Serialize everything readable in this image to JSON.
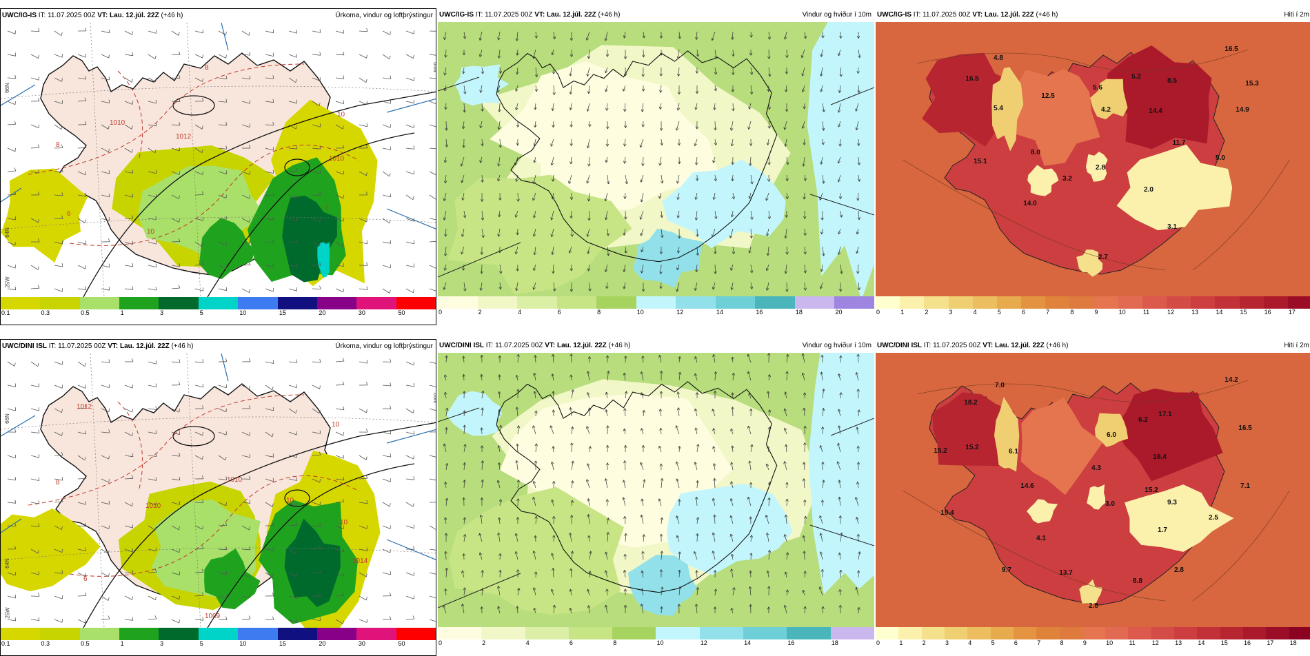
{
  "rows": [
    {
      "panels": [
        {
          "kind": "precip",
          "model": "UWC/IG-IS",
          "it": "IT: 11.07.2025 00Z",
          "vt": "VT: Lau. 12.júl. 22Z",
          "lead": "(+46 h)",
          "variable": "Úrkoma, vindur og loftþrýstingur",
          "legend": [
            "0.1",
            "0.3",
            "0.5",
            "1",
            "3",
            "5",
            "10",
            "15",
            "20",
            "30",
            "50"
          ],
          "grid_labels": {
            "lat_a": "66N",
            "lon_a": "65N",
            "lat_b": "64N",
            "lon_b": "25W"
          },
          "iso_labels": [
            "1010",
            "1012",
            "1010",
            "8",
            "6",
            "10",
            "10",
            "6",
            "8"
          ]
        },
        {
          "kind": "wind",
          "model": "UWC/IG-IS",
          "it": "IT: 11.07.2025 00Z",
          "vt": "VT: Lau. 12.júl. 22Z",
          "lead": "(+46 h)",
          "variable": "Vindur og hviður í 10m",
          "legend": [
            "0",
            "2",
            "4",
            "6",
            "8",
            "10",
            "12",
            "14",
            "16",
            "18",
            "20"
          ]
        },
        {
          "kind": "temp",
          "model": "UWC/IG-IS",
          "it": "IT: 11.07.2025 00Z",
          "vt": "VT: Lau. 12.júl. 22Z",
          "lead": "(+46 h)",
          "variable": "Hiti í 2m",
          "legend": [
            "0",
            "1",
            "2",
            "3",
            "4",
            "5",
            "6",
            "7",
            "8",
            "9",
            "10",
            "11",
            "12",
            "13",
            "14",
            "15",
            "16",
            "17"
          ],
          "temps": [
            "16.5",
            "4.8",
            "12.5",
            "5.6",
            "5.2",
            "8.5",
            "16.5",
            "15.3",
            "5.4",
            "4.2",
            "14.4",
            "14.9",
            "15.1",
            "8.0",
            "3.2",
            "2.8",
            "11.7",
            "5.0",
            "2.0",
            "14.0",
            "3.1",
            "2.7"
          ]
        }
      ]
    },
    {
      "panels": [
        {
          "kind": "precip",
          "model": "UWC/DINI ISL",
          "it": "IT: 11.07.2025 00Z",
          "vt": "VT: Lau. 12.júl. 22Z",
          "lead": "(+46 h)",
          "variable": "Úrkoma, vindur og loftþrýstingur",
          "legend": [
            "0.1",
            "0.3",
            "0.5",
            "1",
            "3",
            "5",
            "10",
            "15",
            "20",
            "30",
            "50"
          ],
          "grid_labels": {
            "lat_a": "66N",
            "lon_a": "65N",
            "lat_b": "64N",
            "lon_b": "25W"
          },
          "iso_labels": [
            "1012",
            "1010",
            "1010",
            "1009",
            "1014",
            "8",
            "6",
            "10",
            "10",
            "10"
          ]
        },
        {
          "kind": "wind",
          "model": "UWC/DINI ISL",
          "it": "IT: 11.07.2025 00Z",
          "vt": "VT: Lau. 12.júl. 22Z",
          "lead": "(+46 h)",
          "variable": "Vindur og hviður í 10m",
          "legend": [
            "0",
            "2",
            "4",
            "6",
            "8",
            "10",
            "12",
            "14",
            "16",
            "18"
          ]
        },
        {
          "kind": "temp",
          "model": "UWC/DINI ISL",
          "it": "IT: 11.07.2025 00Z",
          "vt": "VT: Lau. 12.júl. 22Z",
          "lead": "(+46 h)",
          "variable": "Hiti í 2m",
          "legend": [
            "0",
            "1",
            "2",
            "3",
            "4",
            "5",
            "6",
            "7",
            "8",
            "9",
            "10",
            "11",
            "12",
            "13",
            "14",
            "15",
            "16",
            "17",
            "18"
          ],
          "temps": [
            "18.2",
            "7.0",
            "14.2",
            "6.0",
            "6.2",
            "17.1",
            "16.5",
            "15.2",
            "15.2",
            "6.1",
            "4.3",
            "16.4",
            "14.6",
            "15.2",
            "9.3",
            "7.1",
            "15.4",
            "3.0",
            "4.1",
            "1.7",
            "2.5",
            "9.7",
            "13.7",
            "8.8",
            "2.8",
            "2.8"
          ]
        }
      ]
    }
  ],
  "palettes": {
    "precip": [
      "#d7d700",
      "#c8d400",
      "#a8e06a",
      "#1fa31f",
      "#006a2c",
      "#00d4c8",
      "#3c7cf0",
      "#101080",
      "#880088",
      "#e0137a",
      "#ff0000"
    ],
    "wind": [
      "#fffde0",
      "#f2f7c8",
      "#dbefa6",
      "#c7e585",
      "#a7d45e",
      "#c3f6fc",
      "#92e1ea",
      "#6fcfd6",
      "#4ab6bc",
      "#c9b7ee",
      "#9e86e0"
    ],
    "temp": [
      "#ffffd0",
      "#fbf1ac",
      "#f5e08c",
      "#f0cf73",
      "#ecbe5f",
      "#e7aa4d",
      "#e49440",
      "#e0833a",
      "#de7a3e",
      "#e4754e",
      "#e26a53",
      "#dc5a4d",
      "#d44c46",
      "#cc3e3f",
      "#c23038",
      "#b72531",
      "#ab1a2b",
      "#9b0d26",
      "#8a0421"
    ]
  },
  "colors": {
    "land_precip": "#f8e6dd",
    "sea_precip": "#ffffff",
    "wind_base": "#b7dd7c",
    "temp_base": "#d8663f",
    "coast": "#111111",
    "isobar": "#111111",
    "isotherm": "#c0392b",
    "meridian": "#2a6fb0"
  },
  "icons": [
    "wind-barb-icon",
    "wind-arrow-icon",
    "map-coastline"
  ]
}
